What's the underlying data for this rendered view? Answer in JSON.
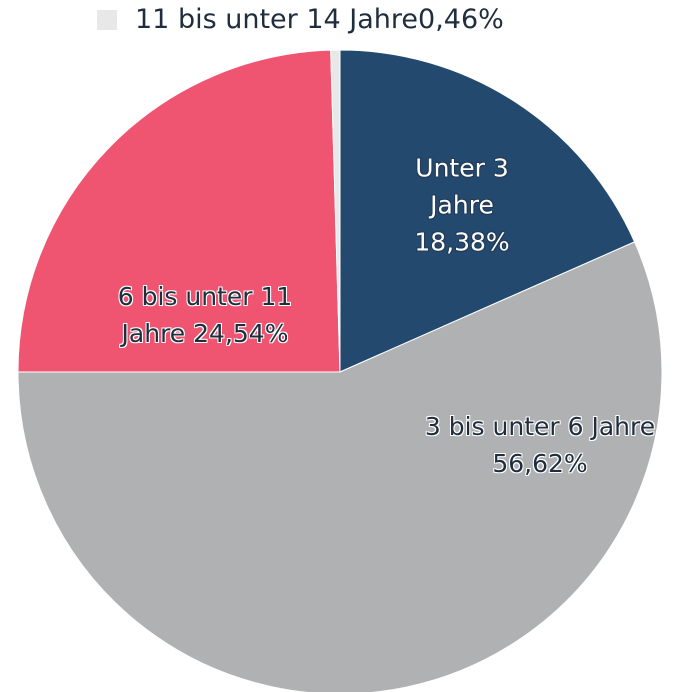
{
  "chart_data": {
    "type": "pie",
    "categories": [
      "Unter 3 Jahre",
      "3 bis unter 6 Jahre",
      "6 bis unter 11 Jahre",
      "11 bis unter 14 Jahre"
    ],
    "values": [
      18.38,
      56.62,
      24.54,
      0.46
    ],
    "value_labels": [
      "18,38%",
      "56,62%",
      "24,54%",
      "0,46%"
    ],
    "colors": [
      "#234a6e",
      "#b0b1b3",
      "#ef5470",
      "#e8e8e8"
    ]
  }
}
